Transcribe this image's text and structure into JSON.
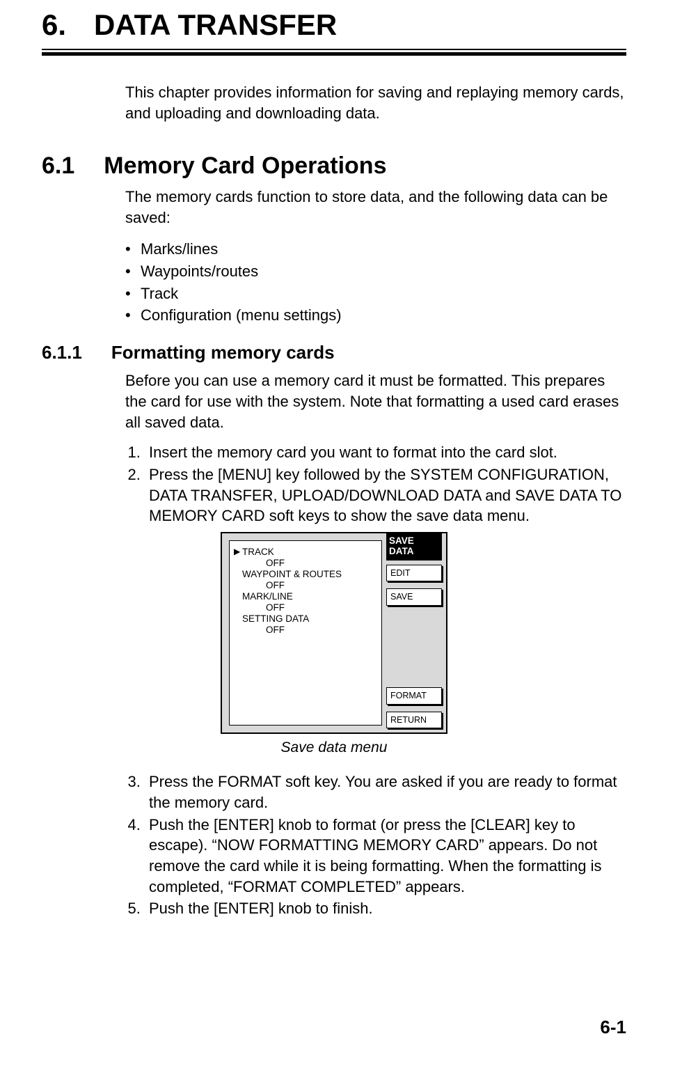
{
  "chapter": {
    "number": "6.",
    "title": "DATA TRANSFER",
    "intro": "This chapter provides information for saving and replaying memory cards, and uploading and downloading data."
  },
  "section_6_1": {
    "number": "6.1",
    "title": "Memory Card Operations",
    "intro": "The memory cards function to store data, and the following data can be saved:",
    "bullets": [
      "Marks/lines",
      "Waypoints/routes",
      "Track",
      "Configuration (menu settings)"
    ]
  },
  "section_6_1_1": {
    "number": "6.1.1",
    "title": "Formatting memory cards",
    "intro": "Before you can use a memory card it must be formatted. This prepares the card for use with the system. Note that formatting a used card erases all saved data.",
    "steps_1": "Insert the memory card you want to format into the card slot.",
    "steps_2": "Press the [MENU] key followed by the SYSTEM CONFIGURATION, DATA TRANSFER, UPLOAD/DOWNLOAD DATA and SAVE DATA TO MEMORY CARD soft keys to show the save data menu.",
    "steps_3": "Press the FORMAT soft key. You are asked if you are ready to format the memory card.",
    "steps_4": "Push the [ENTER] knob to format (or press the [CLEAR] key to escape). “NOW FORMATTING MEMORY CARD” appears. Do not remove the card while it is being formatting. When the formatting is completed, “FORMAT COMPLETED” appears.",
    "steps_5": "Push the [ENTER] knob to finish."
  },
  "screen": {
    "softkey_group_title": "SAVE\nDATA",
    "items": [
      {
        "label": "TRACK",
        "value": "OFF",
        "selected": true
      },
      {
        "label": "WAYPOINT & ROUTES",
        "value": "OFF",
        "selected": false
      },
      {
        "label": "MARK/LINE",
        "value": "OFF",
        "selected": false
      },
      {
        "label": "SETTING DATA",
        "value": "OFF",
        "selected": false
      }
    ],
    "softkeys": {
      "edit": "EDIT",
      "save": "SAVE",
      "format": "FORMAT",
      "return": "RETURN"
    },
    "caption": "Save data menu",
    "colors": {
      "screen_bg": "#d9d9d9",
      "panel_bg": "#ffffff",
      "border": "#000000",
      "softkey_title_bg": "#000000",
      "softkey_title_fg": "#ffffff"
    },
    "fonts": {
      "menu_fontsize_pt": 10,
      "caption_fontsize_pt": 16
    }
  },
  "page_number": "6-1"
}
